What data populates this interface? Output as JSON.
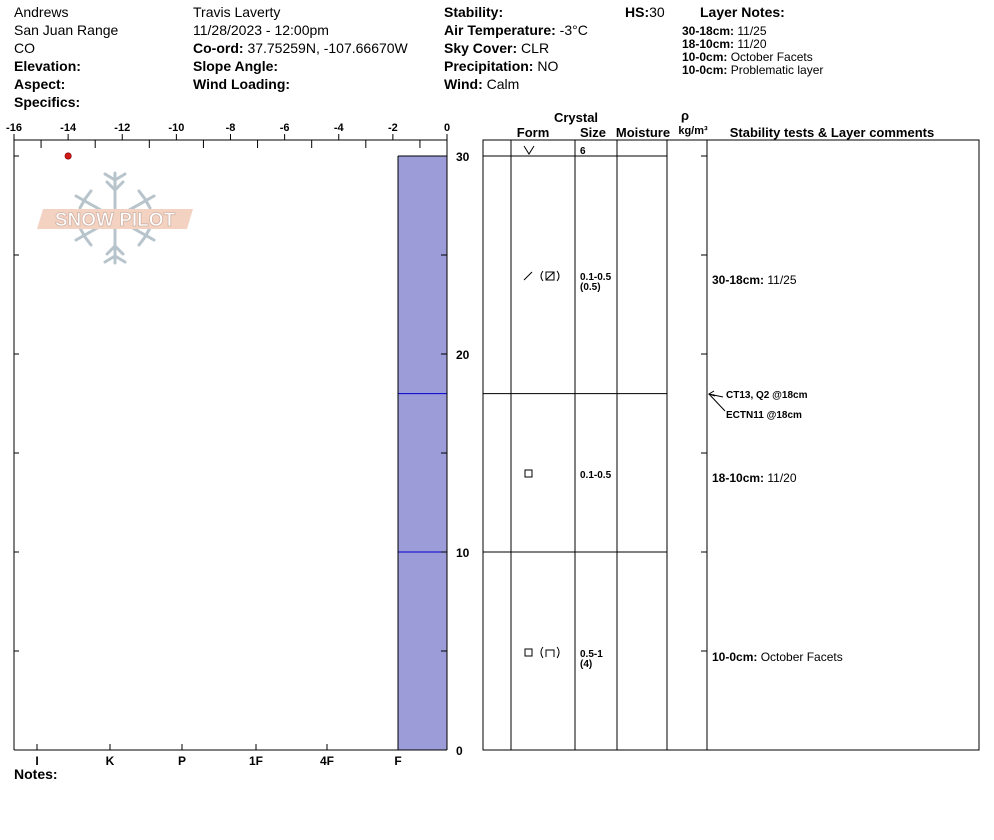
{
  "header": {
    "location": "Andrews",
    "range": "San Juan Range",
    "state": "CO",
    "elevation_label": "Elevation:",
    "aspect_label": "Aspect:",
    "specifics_label": "Specifics:",
    "observer": "Travis Laverty",
    "datetime": "11/28/2023 - 12:00pm",
    "coord_label": "Co-ord:",
    "coord_value": "37.75259N, -107.66670W",
    "slope_label": "Slope Angle:",
    "wind_loading_label": "Wind Loading:",
    "stability_label": "Stability:",
    "air_temp_label": "Air Temperature:",
    "air_temp_value": "-3°C",
    "sky_label": "Sky Cover:",
    "sky_value": "CLR",
    "precip_label": "Precipitation:",
    "precip_value": "NO",
    "wind_label": "Wind:",
    "wind_value": "Calm",
    "hs_label": "HS:",
    "hs_value": "30",
    "layer_notes_title": "Layer Notes:",
    "layer_notes": [
      {
        "range": "30-18cm:",
        "text": "11/25"
      },
      {
        "range": "18-10cm:",
        "text": "11/20"
      },
      {
        "range": "10-0cm:",
        "text": "October Facets"
      },
      {
        "range": "10-0cm:",
        "text": "Problematic layer"
      }
    ]
  },
  "logo": {
    "text": "SNOW PILOT"
  },
  "chart_data": {
    "type": "snow-profile",
    "top_axis_ticks": [
      "-16",
      "-14",
      "-12",
      "-10",
      "-8",
      "-6",
      "-4",
      "-2",
      "0"
    ],
    "temperature_range": [
      -16,
      0
    ],
    "temperature_points": [
      {
        "depth_cm": 30,
        "temp_c": -14
      }
    ],
    "hardness_ticks": [
      "I",
      "K",
      "P",
      "1F",
      "4F",
      "F"
    ],
    "height_ticks": [
      "0",
      "10",
      "20",
      "30"
    ],
    "height_range": [
      0,
      30
    ],
    "layers": [
      {
        "top": 30,
        "bottom": 18,
        "hardness": "F"
      },
      {
        "top": 18,
        "bottom": 10,
        "hardness": "F"
      },
      {
        "top": 10,
        "bottom": 0,
        "hardness": "F"
      }
    ],
    "hardness_bar_color": "#9c9cd9",
    "layer_line_color": "#0000cc"
  },
  "table": {
    "headers": {
      "crystal": "Crystal",
      "form": "Form",
      "size": "Size",
      "moisture": "Moisture",
      "rho": "ρ",
      "density_unit": "kg/m³",
      "comments": "Stability tests & Layer comments"
    },
    "surface_size": "6",
    "rows": [
      {
        "size": "0.1-0.5",
        "size2": "(0.5)",
        "comment_range": "30-18cm:",
        "comment": "11/25"
      },
      {
        "size": "0.1-0.5",
        "size2": "",
        "comment_range": "18-10cm:",
        "comment": "11/20"
      },
      {
        "size": "0.5-1",
        "size2": "(4)",
        "comment_range": "10-0cm:",
        "comment": "October Facets"
      }
    ],
    "tests": [
      "CT13, Q2 @18cm",
      "ECTN11 @18cm"
    ]
  },
  "notes_label": "Notes:"
}
